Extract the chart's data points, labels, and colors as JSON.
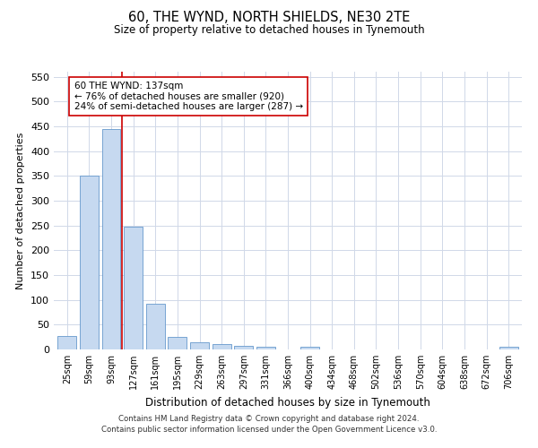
{
  "title": "60, THE WYND, NORTH SHIELDS, NE30 2TE",
  "subtitle": "Size of property relative to detached houses in Tynemouth",
  "xlabel": "Distribution of detached houses by size in Tynemouth",
  "ylabel": "Number of detached properties",
  "bar_color": "#c6d9f0",
  "bar_edge_color": "#6699cc",
  "categories": [
    "25sqm",
    "59sqm",
    "93sqm",
    "127sqm",
    "161sqm",
    "195sqm",
    "229sqm",
    "263sqm",
    "297sqm",
    "331sqm",
    "366sqm",
    "400sqm",
    "434sqm",
    "468sqm",
    "502sqm",
    "536sqm",
    "570sqm",
    "604sqm",
    "638sqm",
    "672sqm",
    "706sqm"
  ],
  "values": [
    27,
    350,
    445,
    248,
    92,
    25,
    14,
    11,
    7,
    6,
    0,
    5,
    0,
    0,
    0,
    0,
    0,
    0,
    0,
    0,
    5
  ],
  "ylim": [
    0,
    560
  ],
  "yticks": [
    0,
    50,
    100,
    150,
    200,
    250,
    300,
    350,
    400,
    450,
    500,
    550
  ],
  "vline_index": 2.5,
  "vline_color": "#cc0000",
  "annotation_line1": "60 THE WYND: 137sqm",
  "annotation_line2": "← 76% of detached houses are smaller (920)",
  "annotation_line3": "24% of semi-detached houses are larger (287) →",
  "annotation_box_color": "#ffffff",
  "annotation_box_edge": "#cc0000",
  "footnote1": "Contains HM Land Registry data © Crown copyright and database right 2024.",
  "footnote2": "Contains public sector information licensed under the Open Government Licence v3.0.",
  "bg_color": "#ffffff",
  "grid_color": "#d0d8e8"
}
